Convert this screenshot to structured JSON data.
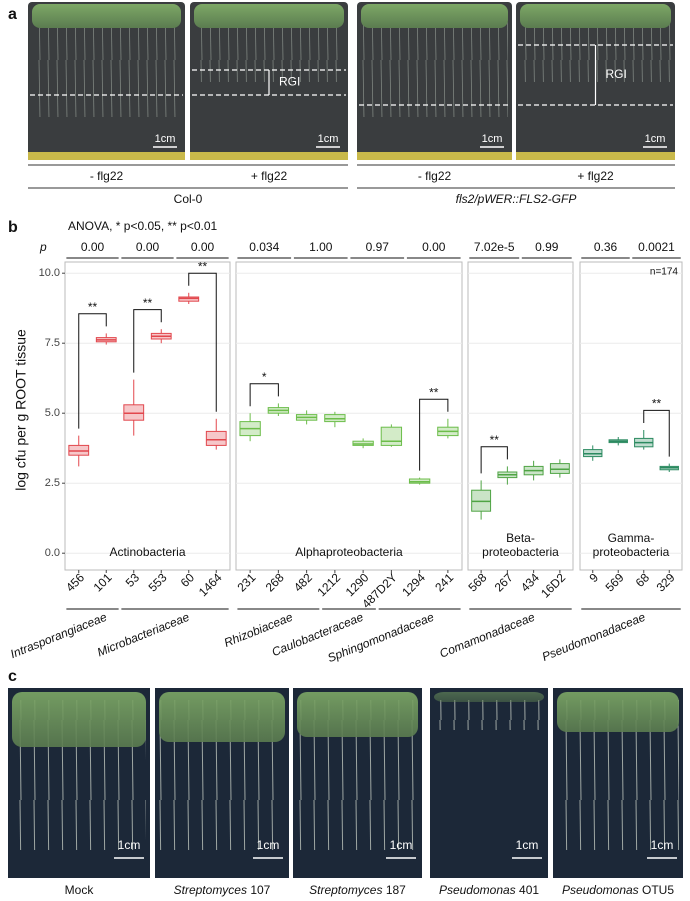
{
  "panel_a": {
    "label": "a",
    "plates": [
      {
        "scale": "1cm",
        "rgi": null
      },
      {
        "scale": "1cm",
        "rgi": "RGI"
      },
      {
        "scale": "1cm",
        "rgi": null
      },
      {
        "scale": "1cm",
        "rgi": "RGI"
      }
    ],
    "treatments": [
      "- flg22",
      "+ flg22",
      "- flg22",
      "+ flg22"
    ],
    "genotypes": [
      "Col-0",
      "fls2/pWER::FLS2-GFP"
    ]
  },
  "chart_data": {
    "type": "box",
    "panel_label": "b",
    "title": "ANOVA, * p<0.05, ** p<0.01",
    "p_label": "p",
    "ylabel": "log cfu per g ROOT tissue",
    "note": "n=174",
    "grid": true,
    "ylim": [
      -0.6,
      10.4
    ],
    "yticks": [
      {
        "value": 0,
        "label": "0.0"
      },
      {
        "value": 2.5,
        "label": "2.5"
      },
      {
        "value": 5,
        "label": "5.0"
      },
      {
        "value": 7.5,
        "label": "7.5"
      },
      {
        "value": 10,
        "label": "10.0"
      }
    ],
    "facets": [
      {
        "name_lines": [
          "Actinobacteria"
        ],
        "color": "#e2474d",
        "families": [
          {
            "name": "Intrasporangiaceae",
            "strains": [
              {
                "label": "456",
                "box": [
                  3.1,
                  3.5,
                  3.65,
                  3.85,
                  4.2
                ]
              },
              {
                "label": "101",
                "box": [
                  7.45,
                  7.55,
                  7.62,
                  7.7,
                  7.85
                ]
              }
            ]
          },
          {
            "name": "Microbacteriaceae",
            "strains": [
              {
                "label": "53",
                "box": [
                  4.2,
                  4.75,
                  5.0,
                  5.3,
                  6.2
                ]
              },
              {
                "label": "553",
                "box": [
                  7.5,
                  7.65,
                  7.75,
                  7.85,
                  8.0
                ]
              },
              {
                "label": "60",
                "box": [
                  8.9,
                  9.0,
                  9.1,
                  9.15,
                  9.3
                ]
              },
              {
                "label": "1464",
                "box": [
                  3.7,
                  3.85,
                  4.05,
                  4.35,
                  4.8
                ]
              }
            ]
          }
        ],
        "pairs": [
          {
            "p": "0.00",
            "sig": "**"
          },
          {
            "p": "0.00",
            "sig": "**"
          },
          {
            "p": "0.00",
            "sig": "**"
          }
        ]
      },
      {
        "name_lines": [
          "Alphaproteobacteria"
        ],
        "color": "#6cbd4a",
        "families": [
          {
            "name": "Rhizobiaceae",
            "strains": [
              {
                "label": "231",
                "box": [
                  4.0,
                  4.2,
                  4.45,
                  4.7,
                  5.0
                ]
              },
              {
                "label": "268",
                "box": [
                  4.9,
                  5.0,
                  5.1,
                  5.2,
                  5.35
                ]
              },
              {
                "label": "482",
                "box": [
                  4.6,
                  4.75,
                  4.85,
                  4.95,
                  5.1
                ]
              }
            ]
          },
          {
            "name": "Caulobacteraceae",
            "strains": [
              {
                "label": "1212",
                "box": [
                  4.5,
                  4.7,
                  4.8,
                  4.95,
                  5.05
                ]
              },
              {
                "label": "1290",
                "box": [
                  3.75,
                  3.85,
                  3.9,
                  4.0,
                  4.1
                ]
              }
            ]
          },
          {
            "name": "Sphingomonadaceae",
            "strains": [
              {
                "label": "487D2Y",
                "box": [
                  3.8,
                  3.85,
                  4.0,
                  4.5,
                  4.6
                ]
              },
              {
                "label": "1294",
                "box": [
                  2.45,
                  2.5,
                  2.55,
                  2.65,
                  2.7
                ]
              },
              {
                "label": "241",
                "box": [
                  4.1,
                  4.2,
                  4.35,
                  4.5,
                  4.8
                ]
              }
            ]
          }
        ],
        "pairs": [
          {
            "p": "0.034",
            "sig": "*"
          },
          {
            "p": "1.00",
            "sig": null
          },
          {
            "p": "0.97",
            "sig": null
          },
          {
            "p": "0.00",
            "sig": "**"
          }
        ]
      },
      {
        "name_lines": [
          "Beta-",
          "proteobacteria"
        ],
        "color": "#4fa444",
        "families": [
          {
            "name": "Comamonadaceae",
            "strains": [
              {
                "label": "568",
                "box": [
                  1.2,
                  1.5,
                  1.85,
                  2.25,
                  2.6
                ]
              },
              {
                "label": "267",
                "box": [
                  2.45,
                  2.7,
                  2.8,
                  2.9,
                  3.1
                ]
              },
              {
                "label": "434",
                "box": [
                  2.6,
                  2.8,
                  2.95,
                  3.1,
                  3.3
                ]
              },
              {
                "label": "16D2",
                "box": [
                  2.7,
                  2.85,
                  3.0,
                  3.2,
                  3.35
                ]
              }
            ]
          }
        ],
        "pairs": [
          {
            "p": "7.02e-5",
            "sig": "**"
          },
          {
            "p": "0.99",
            "sig": null
          }
        ]
      },
      {
        "name_lines": [
          "Gamma-",
          "proteobacteria"
        ],
        "color": "#2b8a60",
        "families": [
          {
            "name": "Pseudomonadaceae",
            "strains": [
              {
                "label": "9",
                "box": [
                  3.3,
                  3.45,
                  3.55,
                  3.7,
                  3.85
                ]
              },
              {
                "label": "569",
                "box": [
                  3.85,
                  3.95,
                  4.0,
                  4.05,
                  4.15
                ]
              },
              {
                "label": "68",
                "box": [
                  3.7,
                  3.8,
                  3.95,
                  4.1,
                  4.4
                ]
              },
              {
                "label": "329",
                "box": [
                  2.9,
                  2.98,
                  3.05,
                  3.1,
                  3.2
                ]
              }
            ]
          }
        ],
        "pairs": [
          {
            "p": "0.36",
            "sig": null
          },
          {
            "p": "0.0021",
            "sig": "**"
          }
        ]
      }
    ]
  },
  "panel_c": {
    "label": "c",
    "images": [
      {
        "italic": null,
        "plain": "Mock",
        "scale": "1cm"
      },
      {
        "italic": "Streptomyces",
        "plain": "107",
        "scale": "1cm"
      },
      {
        "italic": "Streptomyces",
        "plain": "187",
        "scale": "1cm"
      },
      {
        "italic": "Pseudomonas",
        "plain": "401",
        "scale": "1cm"
      },
      {
        "italic": "Pseudomonas",
        "plain": "OTU5",
        "scale": "1cm"
      }
    ]
  }
}
